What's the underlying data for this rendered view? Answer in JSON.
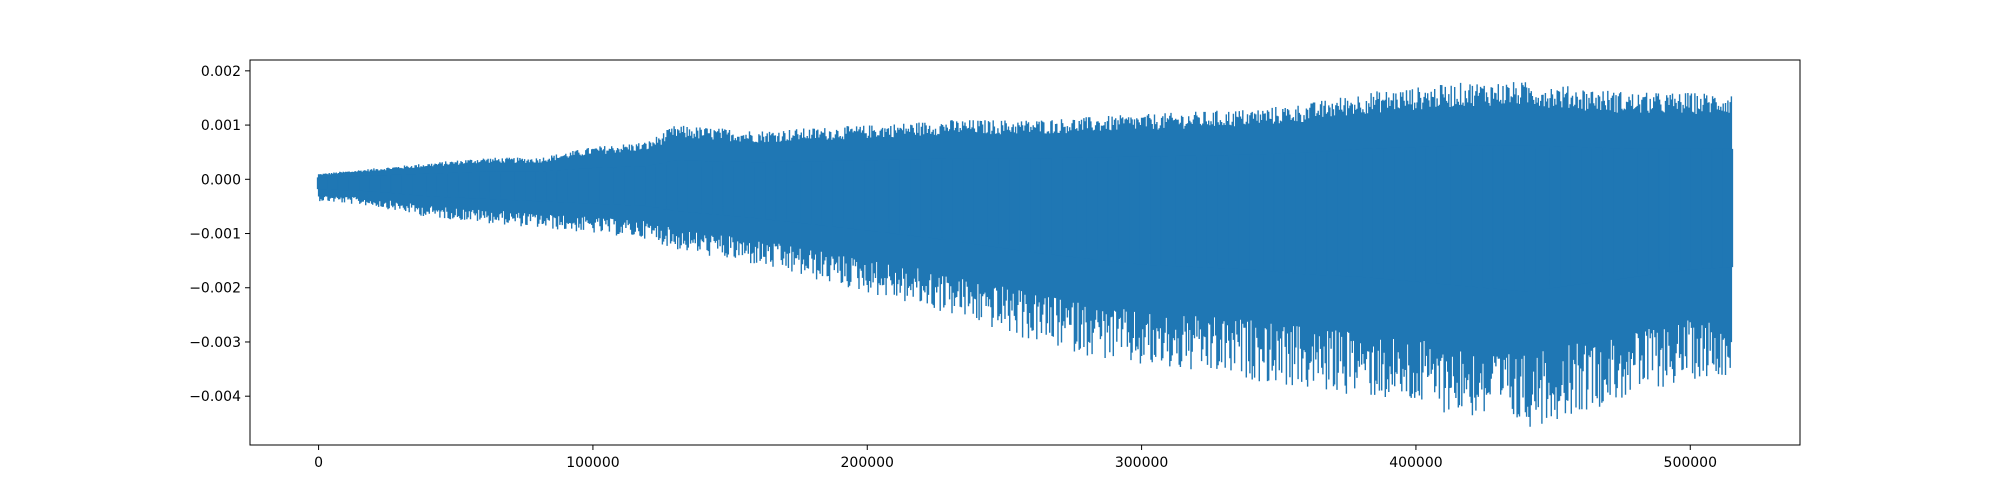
{
  "chart_data": {
    "type": "line",
    "title": "",
    "xlabel": "",
    "ylabel": "",
    "xlim": [
      -25000,
      540000
    ],
    "ylim": [
      -0.0049,
      0.0022
    ],
    "x_ticks": [
      0,
      100000,
      200000,
      300000,
      400000,
      500000
    ],
    "x_tick_labels": [
      "0",
      "100000",
      "200000",
      "300000",
      "400000",
      "500000"
    ],
    "y_ticks": [
      0.002,
      0.001,
      0.0,
      -0.001,
      -0.002,
      -0.003,
      -0.004
    ],
    "y_tick_labels": [
      "0.002",
      "0.001",
      "0.000",
      "−0.001",
      "−0.002",
      "−0.003",
      "−0.004"
    ],
    "grid": false,
    "legend": "none",
    "series_color": "#1f77b4",
    "envelope": {
      "x": [
        0,
        20000,
        40000,
        60000,
        80000,
        100000,
        120000,
        130000,
        160000,
        200000,
        230000,
        260000,
        300000,
        340000,
        360000,
        380000,
        400000,
        420000,
        440000,
        460000,
        480000,
        500000,
        515000
      ],
      "upper": [
        0.0001,
        0.0002,
        0.0003,
        0.0004,
        0.0004,
        0.0006,
        0.0007,
        0.001,
        0.0009,
        0.001,
        0.0011,
        0.0011,
        0.0012,
        0.0013,
        0.0014,
        0.0016,
        0.0017,
        0.0018,
        0.0018,
        0.0017,
        0.0016,
        0.0016,
        0.0016
      ],
      "lower": [
        -0.0004,
        -0.0005,
        -0.0007,
        -0.0008,
        -0.0009,
        -0.001,
        -0.0011,
        -0.0013,
        -0.0016,
        -0.0021,
        -0.0025,
        -0.003,
        -0.0035,
        -0.0037,
        -0.0039,
        -0.004,
        -0.0042,
        -0.0044,
        -0.0046,
        -0.0043,
        -0.004,
        -0.0037,
        -0.0036
      ]
    }
  }
}
